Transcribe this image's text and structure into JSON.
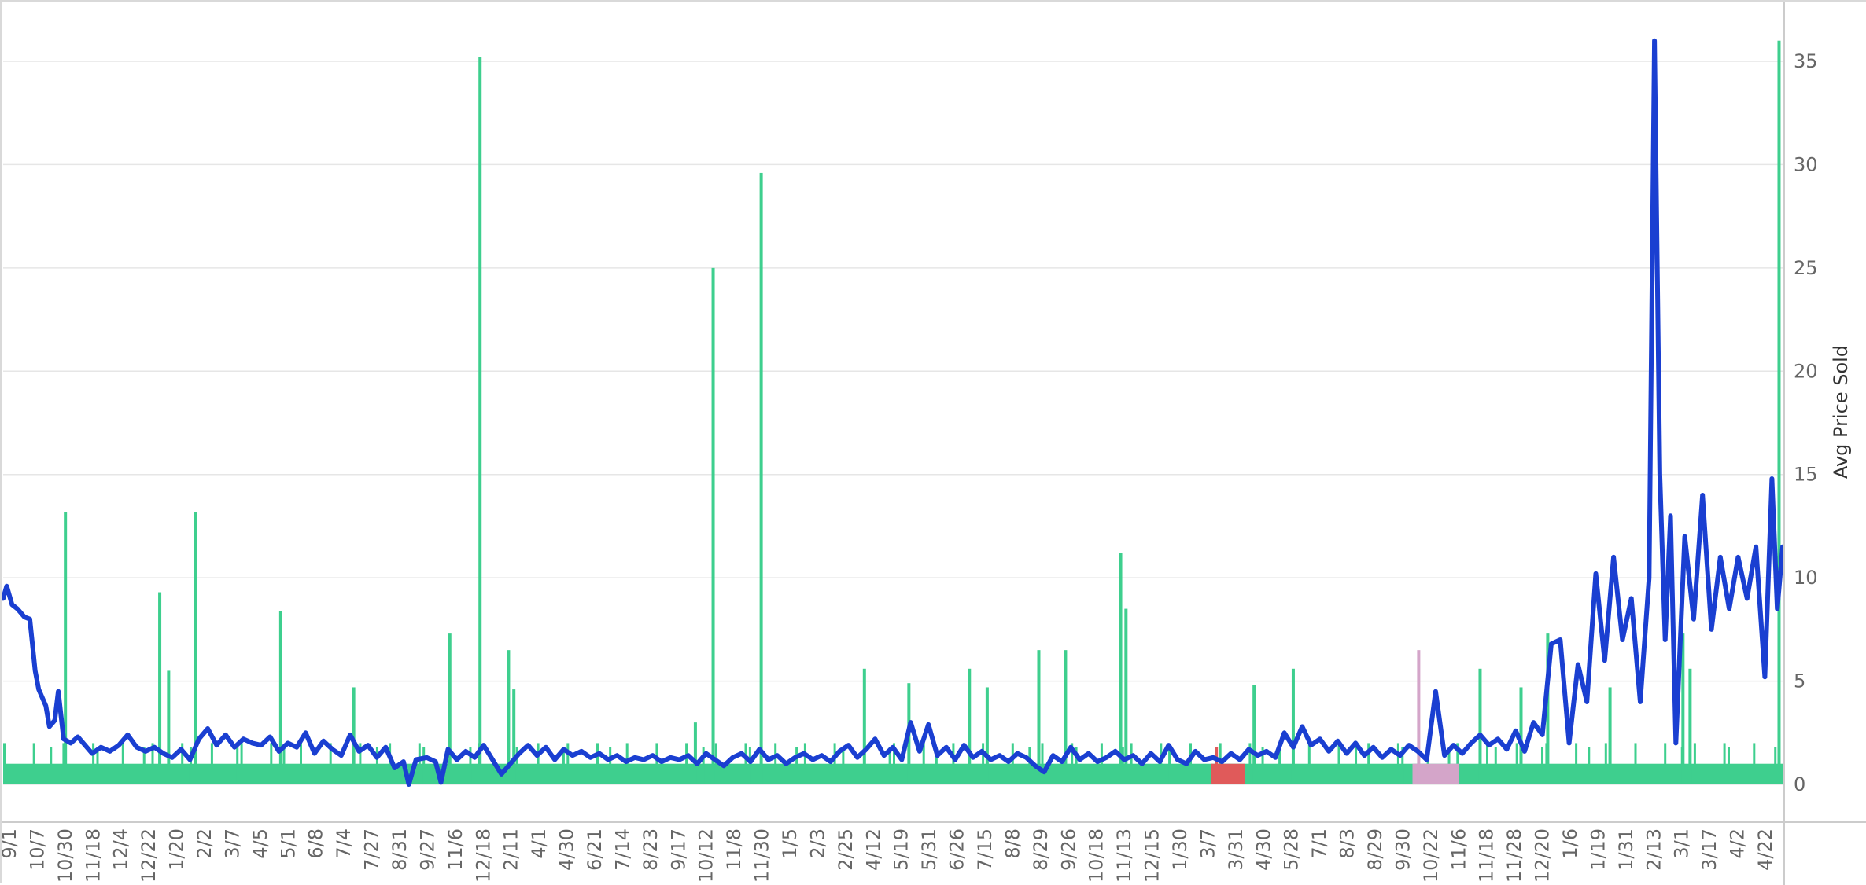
{
  "chart_data": {
    "type": "bar",
    "ylabel": "Avg Price Sold",
    "ylim": [
      0,
      37
    ],
    "yticks": [
      "0",
      "5",
      "10",
      "15",
      "20",
      "25",
      "30",
      "35"
    ],
    "x_tick_labels": [
      "9/1",
      "10/7",
      "10/30",
      "11/18",
      "12/4",
      "12/22",
      "1/20",
      "2/2",
      "3/7",
      "4/5",
      "5/1",
      "6/8",
      "7/4",
      "7/27",
      "8/31",
      "9/27",
      "11/6",
      "12/18",
      "2/11",
      "4/1",
      "4/30",
      "6/21",
      "7/14",
      "8/23",
      "9/17",
      "10/12",
      "11/8",
      "11/30",
      "1/5",
      "2/3",
      "2/25",
      "4/12",
      "5/19",
      "5/31",
      "6/26",
      "7/15",
      "8/8",
      "8/29",
      "9/26",
      "10/18",
      "11/13",
      "12/15",
      "1/30",
      "3/7",
      "3/31",
      "4/30",
      "5/28",
      "7/1",
      "8/3",
      "8/29",
      "9/30",
      "10/22",
      "11/6",
      "11/18",
      "11/28",
      "12/20",
      "1/6",
      "1/19",
      "1/31",
      "2/13",
      "3/1",
      "3/17",
      "4/2",
      "4/22"
    ],
    "grid": true,
    "legend": "none",
    "colors": {
      "bars": "#3ecf8e",
      "line": "#1a3fd1",
      "highlight_red": "#e05a5a",
      "highlight_pink": "#d4a5c9",
      "grid": "#e6e6e6"
    },
    "spikes": [
      {
        "x": 0.035,
        "value": 13.2
      },
      {
        "x": 0.088,
        "value": 9.3
      },
      {
        "x": 0.093,
        "value": 5.5
      },
      {
        "x": 0.108,
        "value": 13.2
      },
      {
        "x": 0.156,
        "value": 8.4
      },
      {
        "x": 0.197,
        "value": 4.7
      },
      {
        "x": 0.251,
        "value": 7.3
      },
      {
        "x": 0.268,
        "value": 35.2
      },
      {
        "x": 0.284,
        "value": 6.5
      },
      {
        "x": 0.287,
        "value": 4.6
      },
      {
        "x": 0.389,
        "value": 3.0
      },
      {
        "x": 0.399,
        "value": 25.0
      },
      {
        "x": 0.426,
        "value": 29.6
      },
      {
        "x": 0.484,
        "value": 5.6
      },
      {
        "x": 0.509,
        "value": 4.9
      },
      {
        "x": 0.543,
        "value": 5.6
      },
      {
        "x": 0.553,
        "value": 4.7
      },
      {
        "x": 0.582,
        "value": 6.5
      },
      {
        "x": 0.597,
        "value": 6.5
      },
      {
        "x": 0.628,
        "value": 11.2
      },
      {
        "x": 0.631,
        "value": 8.5
      },
      {
        "x": 0.703,
        "value": 4.8
      },
      {
        "x": 0.725,
        "value": 5.6
      },
      {
        "x": 0.83,
        "value": 5.6
      },
      {
        "x": 0.853,
        "value": 4.7
      },
      {
        "x": 0.868,
        "value": 7.3
      },
      {
        "x": 0.903,
        "value": 4.7
      },
      {
        "x": 0.944,
        "value": 7.3
      },
      {
        "x": 0.948,
        "value": 5.6
      },
      {
        "x": 0.998,
        "value": 36.0
      }
    ],
    "bar_baseline": 1.0,
    "highlights": [
      {
        "color": "red",
        "x_start": 0.679,
        "x_end": 0.698,
        "value": 1.8
      },
      {
        "color": "pink",
        "x_start": 0.792,
        "x_end": 0.818,
        "value": 6.5
      }
    ],
    "line_series": [
      {
        "x": 0.0,
        "y": 9.0
      },
      {
        "x": 0.002,
        "y": 9.6
      },
      {
        "x": 0.005,
        "y": 8.7
      },
      {
        "x": 0.008,
        "y": 8.5
      },
      {
        "x": 0.012,
        "y": 8.1
      },
      {
        "x": 0.015,
        "y": 8.0
      },
      {
        "x": 0.018,
        "y": 5.5
      },
      {
        "x": 0.02,
        "y": 4.6
      },
      {
        "x": 0.024,
        "y": 3.8
      },
      {
        "x": 0.026,
        "y": 2.8
      },
      {
        "x": 0.029,
        "y": 3.1
      },
      {
        "x": 0.031,
        "y": 4.5
      },
      {
        "x": 0.034,
        "y": 2.2
      },
      {
        "x": 0.038,
        "y": 2.0
      },
      {
        "x": 0.042,
        "y": 2.3
      },
      {
        "x": 0.046,
        "y": 1.9
      },
      {
        "x": 0.05,
        "y": 1.5
      },
      {
        "x": 0.055,
        "y": 1.8
      },
      {
        "x": 0.06,
        "y": 1.6
      },
      {
        "x": 0.065,
        "y": 1.9
      },
      {
        "x": 0.07,
        "y": 2.4
      },
      {
        "x": 0.075,
        "y": 1.8
      },
      {
        "x": 0.08,
        "y": 1.6
      },
      {
        "x": 0.085,
        "y": 1.8
      },
      {
        "x": 0.09,
        "y": 1.5
      },
      {
        "x": 0.095,
        "y": 1.3
      },
      {
        "x": 0.1,
        "y": 1.7
      },
      {
        "x": 0.105,
        "y": 1.2
      },
      {
        "x": 0.11,
        "y": 2.2
      },
      {
        "x": 0.115,
        "y": 2.7
      },
      {
        "x": 0.12,
        "y": 1.9
      },
      {
        "x": 0.125,
        "y": 2.4
      },
      {
        "x": 0.13,
        "y": 1.8
      },
      {
        "x": 0.135,
        "y": 2.2
      },
      {
        "x": 0.14,
        "y": 2.0
      },
      {
        "x": 0.145,
        "y": 1.9
      },
      {
        "x": 0.15,
        "y": 2.3
      },
      {
        "x": 0.155,
        "y": 1.6
      },
      {
        "x": 0.16,
        "y": 2.0
      },
      {
        "x": 0.165,
        "y": 1.8
      },
      {
        "x": 0.17,
        "y": 2.5
      },
      {
        "x": 0.175,
        "y": 1.5
      },
      {
        "x": 0.18,
        "y": 2.1
      },
      {
        "x": 0.185,
        "y": 1.7
      },
      {
        "x": 0.19,
        "y": 1.4
      },
      {
        "x": 0.195,
        "y": 2.4
      },
      {
        "x": 0.2,
        "y": 1.6
      },
      {
        "x": 0.205,
        "y": 1.9
      },
      {
        "x": 0.21,
        "y": 1.3
      },
      {
        "x": 0.215,
        "y": 1.8
      },
      {
        "x": 0.22,
        "y": 0.8
      },
      {
        "x": 0.225,
        "y": 1.1
      },
      {
        "x": 0.228,
        "y": 0.0
      },
      {
        "x": 0.232,
        "y": 1.2
      },
      {
        "x": 0.238,
        "y": 1.3
      },
      {
        "x": 0.243,
        "y": 1.1
      },
      {
        "x": 0.246,
        "y": 0.1
      },
      {
        "x": 0.25,
        "y": 1.7
      },
      {
        "x": 0.255,
        "y": 1.2
      },
      {
        "x": 0.26,
        "y": 1.6
      },
      {
        "x": 0.265,
        "y": 1.3
      },
      {
        "x": 0.27,
        "y": 1.9
      },
      {
        "x": 0.275,
        "y": 1.2
      },
      {
        "x": 0.28,
        "y": 0.5
      },
      {
        "x": 0.285,
        "y": 1.0
      },
      {
        "x": 0.29,
        "y": 1.5
      },
      {
        "x": 0.295,
        "y": 1.9
      },
      {
        "x": 0.3,
        "y": 1.4
      },
      {
        "x": 0.305,
        "y": 1.8
      },
      {
        "x": 0.31,
        "y": 1.2
      },
      {
        "x": 0.315,
        "y": 1.7
      },
      {
        "x": 0.32,
        "y": 1.4
      },
      {
        "x": 0.325,
        "y": 1.6
      },
      {
        "x": 0.33,
        "y": 1.3
      },
      {
        "x": 0.335,
        "y": 1.5
      },
      {
        "x": 0.34,
        "y": 1.2
      },
      {
        "x": 0.345,
        "y": 1.4
      },
      {
        "x": 0.35,
        "y": 1.1
      },
      {
        "x": 0.355,
        "y": 1.3
      },
      {
        "x": 0.36,
        "y": 1.2
      },
      {
        "x": 0.365,
        "y": 1.4
      },
      {
        "x": 0.37,
        "y": 1.1
      },
      {
        "x": 0.375,
        "y": 1.3
      },
      {
        "x": 0.38,
        "y": 1.2
      },
      {
        "x": 0.385,
        "y": 1.4
      },
      {
        "x": 0.39,
        "y": 1.0
      },
      {
        "x": 0.395,
        "y": 1.5
      },
      {
        "x": 0.4,
        "y": 1.2
      },
      {
        "x": 0.405,
        "y": 0.9
      },
      {
        "x": 0.41,
        "y": 1.3
      },
      {
        "x": 0.415,
        "y": 1.5
      },
      {
        "x": 0.42,
        "y": 1.1
      },
      {
        "x": 0.425,
        "y": 1.7
      },
      {
        "x": 0.43,
        "y": 1.2
      },
      {
        "x": 0.435,
        "y": 1.4
      },
      {
        "x": 0.44,
        "y": 1.0
      },
      {
        "x": 0.445,
        "y": 1.3
      },
      {
        "x": 0.45,
        "y": 1.5
      },
      {
        "x": 0.455,
        "y": 1.2
      },
      {
        "x": 0.46,
        "y": 1.4
      },
      {
        "x": 0.465,
        "y": 1.1
      },
      {
        "x": 0.47,
        "y": 1.6
      },
      {
        "x": 0.475,
        "y": 1.9
      },
      {
        "x": 0.48,
        "y": 1.3
      },
      {
        "x": 0.485,
        "y": 1.7
      },
      {
        "x": 0.49,
        "y": 2.2
      },
      {
        "x": 0.495,
        "y": 1.4
      },
      {
        "x": 0.5,
        "y": 1.8
      },
      {
        "x": 0.505,
        "y": 1.2
      },
      {
        "x": 0.51,
        "y": 3.0
      },
      {
        "x": 0.515,
        "y": 1.6
      },
      {
        "x": 0.52,
        "y": 2.9
      },
      {
        "x": 0.525,
        "y": 1.4
      },
      {
        "x": 0.53,
        "y": 1.8
      },
      {
        "x": 0.535,
        "y": 1.2
      },
      {
        "x": 0.54,
        "y": 1.9
      },
      {
        "x": 0.545,
        "y": 1.3
      },
      {
        "x": 0.55,
        "y": 1.6
      },
      {
        "x": 0.555,
        "y": 1.2
      },
      {
        "x": 0.56,
        "y": 1.4
      },
      {
        "x": 0.565,
        "y": 1.1
      },
      {
        "x": 0.57,
        "y": 1.5
      },
      {
        "x": 0.575,
        "y": 1.3
      },
      {
        "x": 0.58,
        "y": 0.9
      },
      {
        "x": 0.585,
        "y": 0.6
      },
      {
        "x": 0.59,
        "y": 1.4
      },
      {
        "x": 0.595,
        "y": 1.1
      },
      {
        "x": 0.6,
        "y": 1.8
      },
      {
        "x": 0.605,
        "y": 1.2
      },
      {
        "x": 0.61,
        "y": 1.5
      },
      {
        "x": 0.615,
        "y": 1.1
      },
      {
        "x": 0.62,
        "y": 1.3
      },
      {
        "x": 0.625,
        "y": 1.6
      },
      {
        "x": 0.63,
        "y": 1.2
      },
      {
        "x": 0.635,
        "y": 1.4
      },
      {
        "x": 0.64,
        "y": 1.0
      },
      {
        "x": 0.645,
        "y": 1.5
      },
      {
        "x": 0.65,
        "y": 1.1
      },
      {
        "x": 0.655,
        "y": 1.9
      },
      {
        "x": 0.66,
        "y": 1.2
      },
      {
        "x": 0.665,
        "y": 1.0
      },
      {
        "x": 0.67,
        "y": 1.6
      },
      {
        "x": 0.675,
        "y": 1.2
      },
      {
        "x": 0.68,
        "y": 1.3
      },
      {
        "x": 0.685,
        "y": 1.1
      },
      {
        "x": 0.69,
        "y": 1.5
      },
      {
        "x": 0.695,
        "y": 1.2
      },
      {
        "x": 0.7,
        "y": 1.7
      },
      {
        "x": 0.705,
        "y": 1.4
      },
      {
        "x": 0.71,
        "y": 1.6
      },
      {
        "x": 0.715,
        "y": 1.3
      },
      {
        "x": 0.72,
        "y": 2.5
      },
      {
        "x": 0.725,
        "y": 1.8
      },
      {
        "x": 0.73,
        "y": 2.8
      },
      {
        "x": 0.735,
        "y": 1.9
      },
      {
        "x": 0.74,
        "y": 2.2
      },
      {
        "x": 0.745,
        "y": 1.6
      },
      {
        "x": 0.75,
        "y": 2.1
      },
      {
        "x": 0.755,
        "y": 1.5
      },
      {
        "x": 0.76,
        "y": 2.0
      },
      {
        "x": 0.765,
        "y": 1.4
      },
      {
        "x": 0.77,
        "y": 1.8
      },
      {
        "x": 0.775,
        "y": 1.3
      },
      {
        "x": 0.78,
        "y": 1.7
      },
      {
        "x": 0.785,
        "y": 1.4
      },
      {
        "x": 0.79,
        "y": 1.9
      },
      {
        "x": 0.795,
        "y": 1.6
      },
      {
        "x": 0.8,
        "y": 1.2
      },
      {
        "x": 0.805,
        "y": 4.5
      },
      {
        "x": 0.81,
        "y": 1.4
      },
      {
        "x": 0.815,
        "y": 1.9
      },
      {
        "x": 0.82,
        "y": 1.5
      },
      {
        "x": 0.825,
        "y": 2.0
      },
      {
        "x": 0.83,
        "y": 2.4
      },
      {
        "x": 0.835,
        "y": 1.9
      },
      {
        "x": 0.84,
        "y": 2.2
      },
      {
        "x": 0.845,
        "y": 1.7
      },
      {
        "x": 0.85,
        "y": 2.6
      },
      {
        "x": 0.855,
        "y": 1.6
      },
      {
        "x": 0.86,
        "y": 3.0
      },
      {
        "x": 0.865,
        "y": 2.4
      },
      {
        "x": 0.87,
        "y": 6.8
      },
      {
        "x": 0.875,
        "y": 7.0
      },
      {
        "x": 0.88,
        "y": 2.0
      },
      {
        "x": 0.885,
        "y": 5.8
      },
      {
        "x": 0.89,
        "y": 4.0
      },
      {
        "x": 0.895,
        "y": 10.2
      },
      {
        "x": 0.9,
        "y": 6.0
      },
      {
        "x": 0.905,
        "y": 11.0
      },
      {
        "x": 0.91,
        "y": 7.0
      },
      {
        "x": 0.915,
        "y": 9.0
      },
      {
        "x": 0.92,
        "y": 4.0
      },
      {
        "x": 0.925,
        "y": 10.0
      },
      {
        "x": 0.928,
        "y": 36.0
      },
      {
        "x": 0.931,
        "y": 15.0
      },
      {
        "x": 0.934,
        "y": 7.0
      },
      {
        "x": 0.937,
        "y": 13.0
      },
      {
        "x": 0.94,
        "y": 2.0
      },
      {
        "x": 0.945,
        "y": 12.0
      },
      {
        "x": 0.95,
        "y": 8.0
      },
      {
        "x": 0.955,
        "y": 14.0
      },
      {
        "x": 0.96,
        "y": 7.5
      },
      {
        "x": 0.965,
        "y": 11.0
      },
      {
        "x": 0.97,
        "y": 8.5
      },
      {
        "x": 0.975,
        "y": 11.0
      },
      {
        "x": 0.98,
        "y": 9.0
      },
      {
        "x": 0.985,
        "y": 11.5
      },
      {
        "x": 0.99,
        "y": 5.2
      },
      {
        "x": 0.994,
        "y": 14.8
      },
      {
        "x": 0.997,
        "y": 8.5
      },
      {
        "x": 1.0,
        "y": 11.5
      }
    ]
  }
}
